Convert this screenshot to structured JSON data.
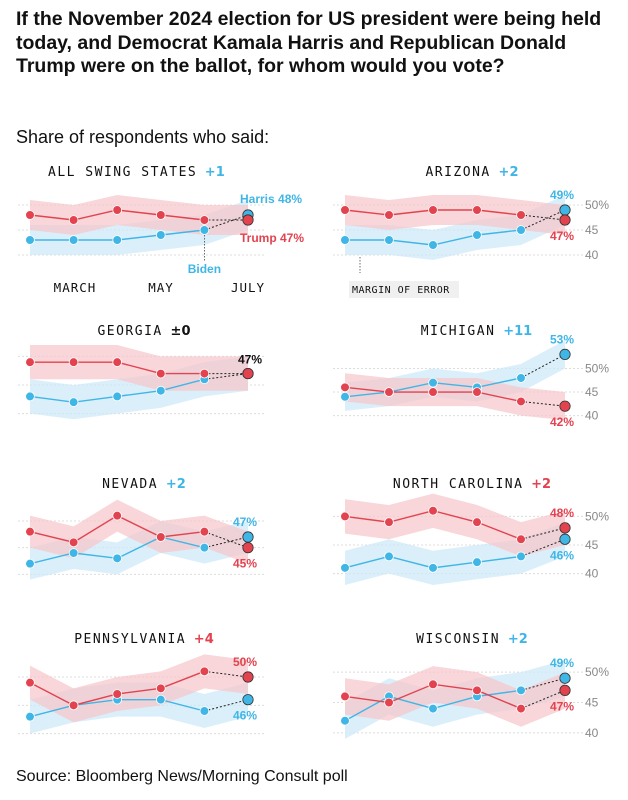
{
  "title": "If the November 2024 election for US president were being held today, and Democrat Kamala Harris and Republican Donald Trump were on the ballot, for whom would you vote?",
  "subtitle": "Share of respondents who said:",
  "source": "Source: Bloomberg News/Morning Consult poll",
  "colors": {
    "harris": "#3fb6e6",
    "trump": "#e2434f",
    "harris_band": "#cfeaf8",
    "trump_band": "#f6c8cc"
  },
  "chart_data": [
    {
      "type": "line",
      "title": "ALL SWING STATES",
      "margin": "+1",
      "margin_party": "harris",
      "x_ticks": [
        "MARCH",
        "MAY",
        "JULY"
      ],
      "ylim": [
        38,
        52
      ],
      "series": [
        {
          "name": "Harris",
          "values": [
            43,
            43,
            43,
            44,
            45,
            48
          ],
          "end_label": "Harris 48%"
        },
        {
          "name": "Trump",
          "values": [
            48,
            47,
            49,
            48,
            47,
            47
          ],
          "end_label": "Trump 47%"
        }
      ],
      "annotation": "Biden"
    },
    {
      "type": "line",
      "title": "ARIZONA",
      "margin": "+2",
      "margin_party": "harris",
      "y_ticks": [
        "50%",
        "45",
        "40"
      ],
      "ylim": [
        38,
        52
      ],
      "series": [
        {
          "name": "Harris",
          "values": [
            43,
            43,
            42,
            44,
            45,
            49
          ],
          "end_label": "49%"
        },
        {
          "name": "Trump",
          "values": [
            49,
            48,
            49,
            49,
            48,
            47
          ],
          "end_label": "47%"
        }
      ],
      "annotation": "MARGIN OF ERROR"
    },
    {
      "type": "line",
      "title": "GEORGIA",
      "margin": "±0",
      "margin_party": "neutral",
      "ylim": [
        38,
        52
      ],
      "series": [
        {
          "name": "Harris",
          "values": [
            43,
            42,
            43,
            44,
            46,
            47
          ]
        },
        {
          "name": "Trump",
          "values": [
            49,
            49,
            49,
            47,
            47,
            47
          ]
        }
      ],
      "end_label": "47%"
    },
    {
      "type": "line",
      "title": "MICHIGAN",
      "margin": "+11",
      "margin_party": "harris",
      "y_ticks": [
        "50%",
        "45",
        "40"
      ],
      "ylim": [
        38,
        55
      ],
      "series": [
        {
          "name": "Harris",
          "values": [
            44,
            45,
            47,
            46,
            48,
            53
          ],
          "end_label": "53%"
        },
        {
          "name": "Trump",
          "values": [
            46,
            45,
            45,
            45,
            43,
            42
          ],
          "end_label": "42%"
        }
      ]
    },
    {
      "type": "line",
      "title": "NEVADA",
      "margin": "+2",
      "margin_party": "harris",
      "ylim": [
        38,
        53
      ],
      "series": [
        {
          "name": "Harris",
          "values": [
            42,
            44,
            43,
            47,
            45,
            47
          ],
          "end_label": "47%"
        },
        {
          "name": "Trump",
          "values": [
            48,
            46,
            51,
            47,
            48,
            45
          ],
          "end_label": "45%"
        }
      ]
    },
    {
      "type": "line",
      "title": "NORTH CAROLINA",
      "margin": "+2",
      "margin_party": "trump",
      "y_ticks": [
        "50%",
        "45",
        "40"
      ],
      "ylim": [
        38,
        52
      ],
      "series": [
        {
          "name": "Harris",
          "values": [
            41,
            43,
            41,
            42,
            43,
            46
          ],
          "end_label": "46%"
        },
        {
          "name": "Trump",
          "values": [
            50,
            49,
            51,
            49,
            46,
            48
          ],
          "end_label": "48%"
        }
      ]
    },
    {
      "type": "line",
      "title": "PENNSYLVANIA",
      "margin": "+4",
      "margin_party": "trump",
      "ylim": [
        38,
        53
      ],
      "series": [
        {
          "name": "Harris",
          "values": [
            43,
            45,
            46,
            46,
            44,
            46
          ],
          "end_label": "46%"
        },
        {
          "name": "Trump",
          "values": [
            49,
            45,
            47,
            48,
            51,
            50
          ],
          "end_label": "50%"
        }
      ]
    },
    {
      "type": "line",
      "title": "WISCONSIN",
      "margin": "+2",
      "margin_party": "harris",
      "y_ticks": [
        "50%",
        "45",
        "40"
      ],
      "ylim": [
        38,
        52
      ],
      "series": [
        {
          "name": "Harris",
          "values": [
            42,
            46,
            44,
            46,
            47,
            49
          ],
          "end_label": "49%"
        },
        {
          "name": "Trump",
          "values": [
            46,
            45,
            48,
            47,
            44,
            47
          ],
          "end_label": "47%"
        }
      ]
    }
  ]
}
